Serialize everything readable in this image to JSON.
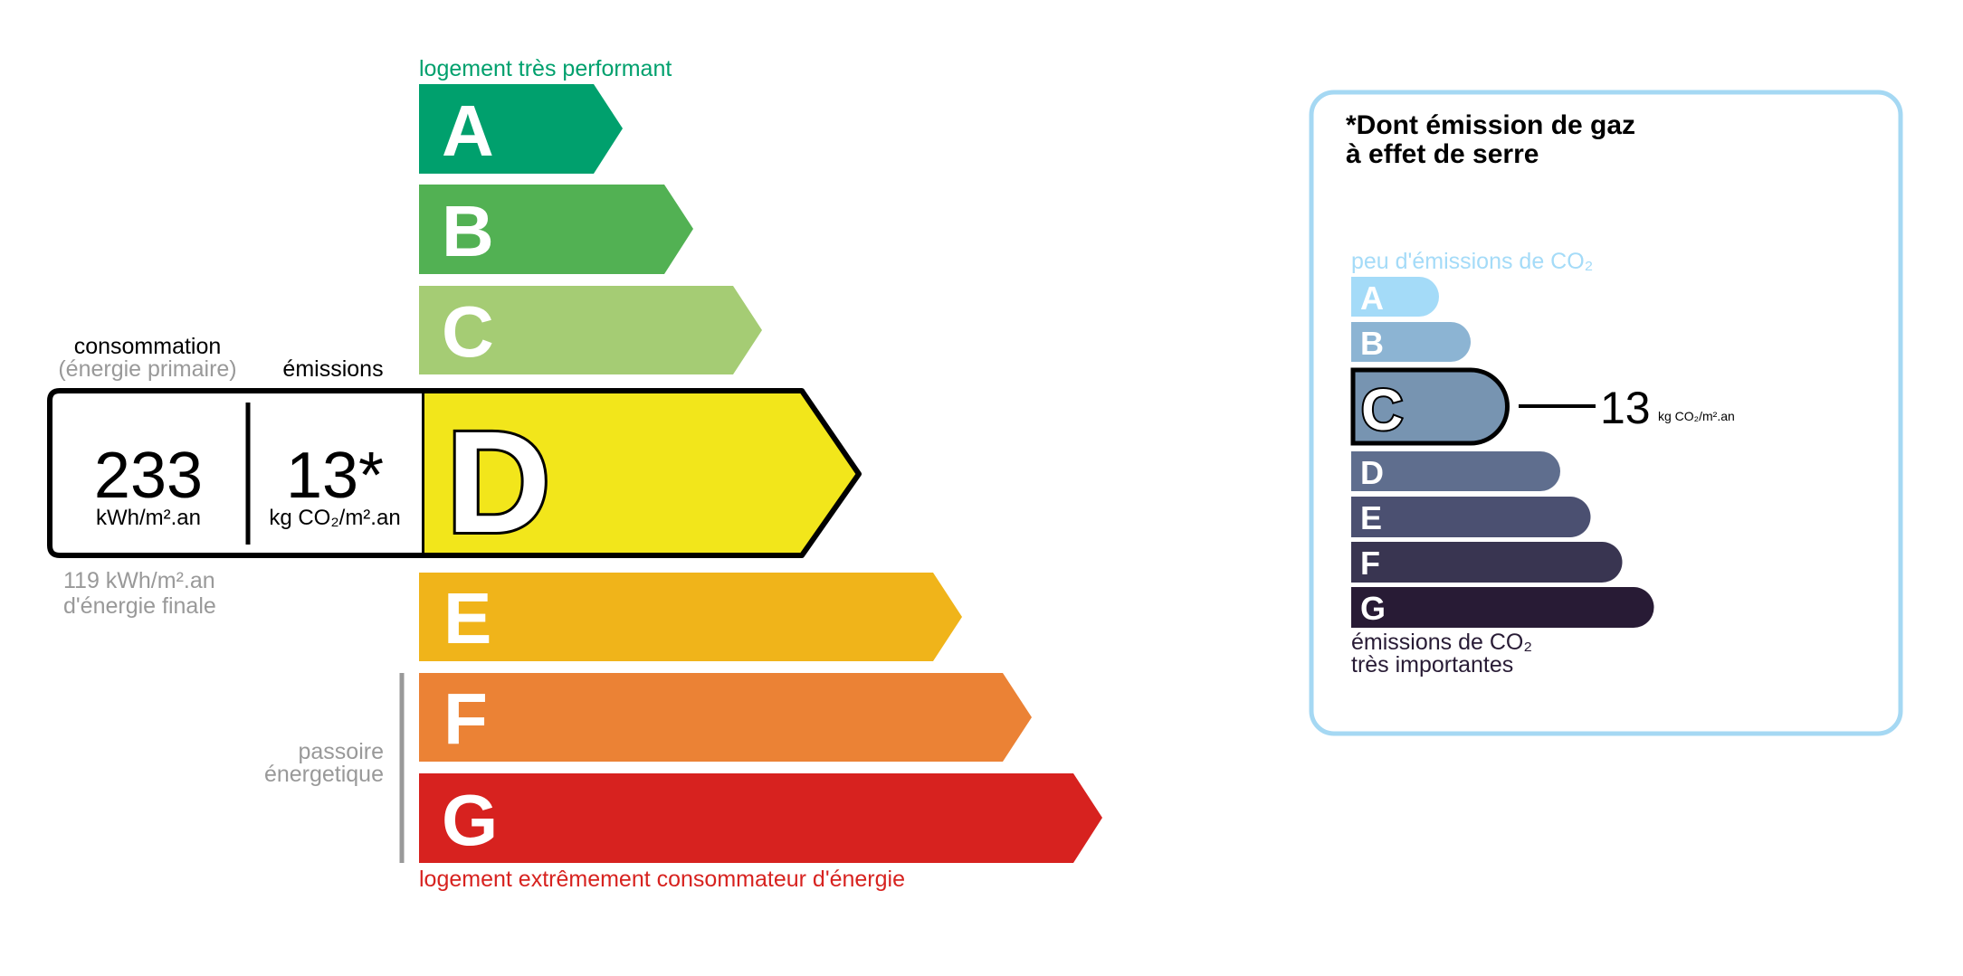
{
  "energy_label": {
    "top_caption": "logement très performant",
    "bottom_caption": "logement extrêmement consommateur d'énergie",
    "passoire_line1": "passoire",
    "passoire_line2": "énergetique",
    "classes": [
      {
        "letter": "A",
        "color": "#00a06d"
      },
      {
        "letter": "B",
        "color": "#52b153"
      },
      {
        "letter": "C",
        "color": "#a5cc74"
      },
      {
        "letter": "D",
        "color": "#f2e61b"
      },
      {
        "letter": "E",
        "color": "#f0b41a"
      },
      {
        "letter": "F",
        "color": "#eb8235"
      },
      {
        "letter": "G",
        "color": "#d7221f"
      }
    ],
    "current_class": "D",
    "consumption_header": "consommation",
    "consumption_subheader": "(énergie primaire)",
    "emissions_header": "émissions",
    "consumption_value": "233",
    "consumption_unit": "kWh/m².an",
    "emissions_value": "13*",
    "emissions_unit": "kg CO₂/m².an",
    "final_energy_line1": "119 kWh/m².an",
    "final_energy_line2": "d'énergie finale"
  },
  "ges_panel": {
    "title_line1": "*Dont émission de gaz",
    "title_line2": "à effet de serre",
    "top_caption": "peu d'émissions de CO₂",
    "bottom_caption_line1": "émissions de CO₂",
    "bottom_caption_line2": "très importantes",
    "classes": [
      {
        "letter": "A",
        "color": "#a4dbf8"
      },
      {
        "letter": "B",
        "color": "#8cb4d3"
      },
      {
        "letter": "C",
        "color": "#7794b1"
      },
      {
        "letter": "D",
        "color": "#5f6e8e"
      },
      {
        "letter": "E",
        "color": "#4b5071"
      },
      {
        "letter": "F",
        "color": "#393551"
      },
      {
        "letter": "G",
        "color": "#281b35"
      }
    ],
    "current_class": "C",
    "value": "13",
    "unit": "kg CO₂/m².an",
    "border_color": "#a5d8f3"
  }
}
